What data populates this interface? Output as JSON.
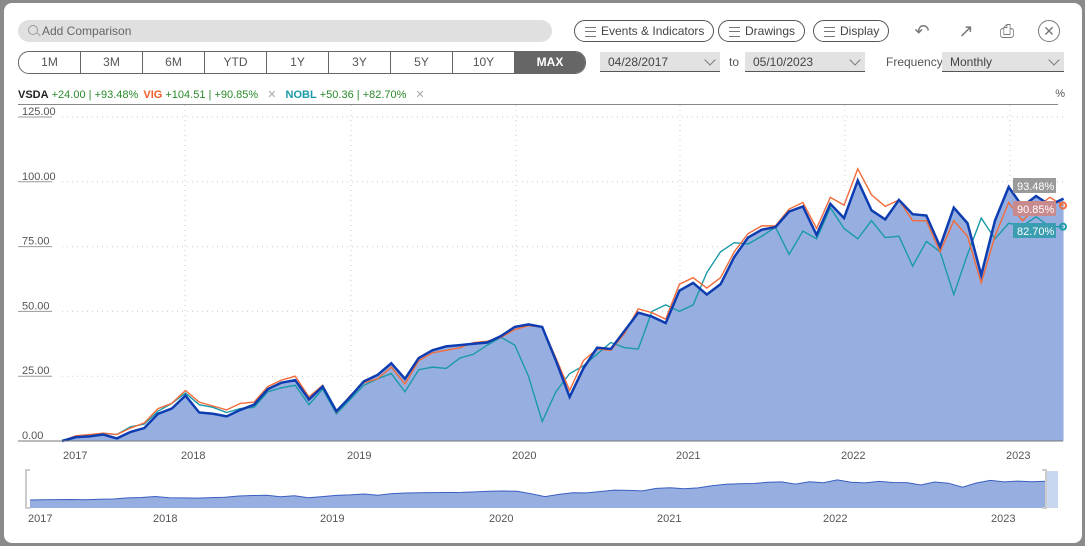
{
  "toolbar": {
    "search_placeholder": "Add Comparison",
    "events_label": "Events & Indicators",
    "drawings_label": "Drawings",
    "display_label": "Display",
    "icons": [
      "undo-icon",
      "popout-icon",
      "print-icon",
      "close-icon"
    ]
  },
  "ranges": [
    {
      "label": "1M"
    },
    {
      "label": "3M"
    },
    {
      "label": "6M"
    },
    {
      "label": "YTD"
    },
    {
      "label": "1Y"
    },
    {
      "label": "3Y"
    },
    {
      "label": "5Y"
    },
    {
      "label": "10Y"
    },
    {
      "label": "MAX",
      "active": true
    }
  ],
  "dates": {
    "from": "04/28/2017",
    "to_label": "to",
    "to": "05/10/2023"
  },
  "frequency": {
    "label": "Frequency",
    "value": "Monthly"
  },
  "legend": [
    {
      "symbol": "VSDA",
      "change": "+24.00",
      "pct": "+93.48%",
      "color": "#222222"
    },
    {
      "symbol": "VIG",
      "change": "+104.51",
      "pct": "+90.85%",
      "color": "#f05a28"
    },
    {
      "symbol": "NOBL",
      "change": "+50.36",
      "pct": "+82.70%",
      "color": "#1a9aa8"
    }
  ],
  "unit_label": "%",
  "chart_data": {
    "type": "line",
    "title": "",
    "xlabel": "",
    "ylabel": "%",
    "ylim": [
      0,
      125
    ],
    "yticks": [
      "0.00",
      "25.00",
      "50.00",
      "75.00",
      "100.00",
      "125.00"
    ],
    "xticks": [
      "2017",
      "2018",
      "2019",
      "2020",
      "2021",
      "2022",
      "2023"
    ],
    "x_start": "2017-04",
    "x_end": "2023-05",
    "frequency": "monthly",
    "series": [
      {
        "name": "VSDA",
        "color": "#0d3db0",
        "end_label": "93.48%",
        "values": [
          0,
          1.5,
          1.8,
          2.5,
          1,
          3.5,
          5,
          10.5,
          12.5,
          17.5,
          11,
          10.5,
          9.5,
          12,
          14,
          20,
          22.5,
          23.5,
          16,
          21,
          11.5,
          17,
          23,
          25.5,
          30,
          24,
          32,
          35,
          36.5,
          37,
          37.5,
          38,
          40.5,
          44,
          45,
          44,
          31,
          17,
          28,
          36,
          35.5,
          42.5,
          49.5,
          48,
          45.5,
          58,
          61,
          56.5,
          60.5,
          71,
          78.5,
          81.5,
          82.5,
          88.5,
          90.5,
          79.5,
          91.5,
          86,
          100.5,
          89,
          85.5,
          93,
          87.5,
          87,
          75,
          90,
          84,
          64,
          85,
          98,
          90.5,
          94.5,
          91,
          93.5
        ]
      },
      {
        "name": "VIG",
        "color": "#f26b3a",
        "end_label": "90.85%",
        "values": [
          0,
          2,
          2.5,
          3,
          2.5,
          5,
          7,
          12.5,
          14.5,
          19.5,
          15,
          13.5,
          12,
          14.5,
          15,
          21,
          23.5,
          25,
          17,
          21.5,
          11,
          17.5,
          22.5,
          24,
          28.5,
          22,
          31,
          34,
          35,
          36,
          38,
          38.5,
          40,
          43,
          44.5,
          44,
          32,
          19.5,
          31,
          35.5,
          35,
          41.5,
          51,
          49.5,
          47,
          60.5,
          63,
          59,
          63,
          73,
          80,
          83,
          83,
          89.5,
          92,
          82,
          94,
          91,
          105,
          95,
          90.5,
          93,
          85,
          85,
          73,
          85,
          79,
          61,
          79,
          92,
          85,
          90,
          94,
          90.85
        ]
      },
      {
        "name": "NOBL",
        "color": "#1a9aa8",
        "end_label": "82.70%",
        "values": [
          0,
          1.5,
          2,
          3,
          2.5,
          5.5,
          6.5,
          11.5,
          14.5,
          18.5,
          14,
          13,
          11,
          12.5,
          13,
          19,
          20.5,
          21.5,
          14,
          20,
          10.5,
          16,
          21.5,
          24,
          26,
          19,
          27.5,
          28.5,
          28,
          32,
          33.5,
          37,
          40,
          37,
          25,
          7.5,
          19,
          26,
          29,
          33.5,
          38,
          36,
          35.5,
          50,
          52.5,
          50,
          52.5,
          65,
          73,
          76.5,
          76,
          79,
          82.5,
          72,
          81,
          78,
          90,
          82,
          78,
          85,
          78.5,
          79,
          67.5,
          77,
          73,
          56.5,
          72,
          86,
          78,
          84,
          83,
          86.5,
          82.7,
          82.7
        ]
      }
    ]
  },
  "navigator": {
    "xticks": [
      "2017",
      "2018",
      "2019",
      "2020",
      "2021",
      "2022",
      "2023"
    ]
  }
}
